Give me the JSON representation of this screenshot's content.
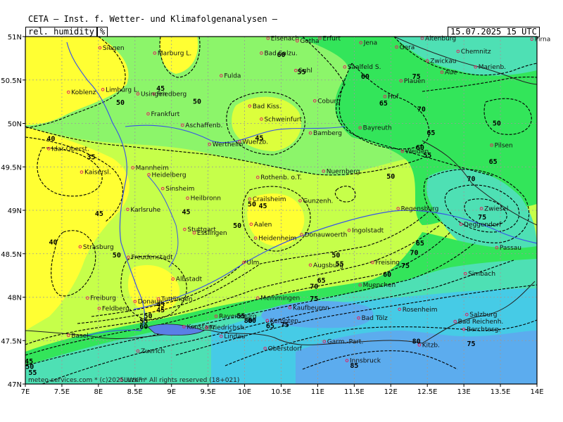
{
  "header": {
    "title": "CETA — Inst. f. Wetter- und Klimafolgenanalysen —",
    "variable_label": "rel. humidity",
    "unit": "%",
    "valid_time": "15.07.2025 15 UTC"
  },
  "copyright": "meteo-services.com * (c)2025 IWKF * All rights reserved (18+021)",
  "axes": {
    "y_ticks": [
      "51N",
      "50.5N",
      "50N",
      "49.5N",
      "49N",
      "48.5N",
      "48N",
      "47.5N",
      "47N"
    ],
    "x_ticks": [
      "7E",
      "7.5E",
      "8E",
      "8.5E",
      "9E",
      "9.5E",
      "10E",
      "10.5E",
      "11E",
      "11.5E",
      "12E",
      "12.5E",
      "13E",
      "13.5E",
      "14E"
    ]
  },
  "contour_labels": [
    {
      "t": "40",
      "lon": 7.35,
      "lat": 49.82
    },
    {
      "t": "35",
      "lon": 7.9,
      "lat": 49.61
    },
    {
      "t": "40",
      "lon": 7.38,
      "lat": 48.63
    },
    {
      "t": "45",
      "lon": 7.05,
      "lat": 47.26
    },
    {
      "t": "50",
      "lon": 7.06,
      "lat": 47.2
    },
    {
      "t": "55",
      "lon": 7.1,
      "lat": 47.13
    },
    {
      "t": "45",
      "lon": 8.01,
      "lat": 48.96
    },
    {
      "t": "45",
      "lon": 8.85,
      "lat": 50.4
    },
    {
      "t": "50",
      "lon": 8.3,
      "lat": 50.24
    },
    {
      "t": "50",
      "lon": 9.35,
      "lat": 50.25
    },
    {
      "t": "45",
      "lon": 9.2,
      "lat": 48.98
    },
    {
      "t": "50",
      "lon": 8.25,
      "lat": 48.48
    },
    {
      "t": "45",
      "lon": 8.85,
      "lat": 47.91
    },
    {
      "t": "45",
      "lon": 8.85,
      "lat": 47.85
    },
    {
      "t": "50",
      "lon": 8.68,
      "lat": 47.78
    },
    {
      "t": "55",
      "lon": 8.62,
      "lat": 47.72
    },
    {
      "t": "60",
      "lon": 8.62,
      "lat": 47.66
    },
    {
      "t": "45",
      "lon": 10.2,
      "lat": 49.83
    },
    {
      "t": "50",
      "lon": 10.1,
      "lat": 49.07
    },
    {
      "t": "45",
      "lon": 10.25,
      "lat": 49.05
    },
    {
      "t": "50",
      "lon": 9.9,
      "lat": 48.82
    },
    {
      "t": "55",
      "lon": 9.95,
      "lat": 47.78
    },
    {
      "t": "60",
      "lon": 10.1,
      "lat": 47.73
    },
    {
      "t": "65",
      "lon": 10.35,
      "lat": 47.67
    },
    {
      "t": "60",
      "lon": 10.5,
      "lat": 50.79
    },
    {
      "t": "55",
      "lon": 10.78,
      "lat": 50.59
    },
    {
      "t": "60",
      "lon": 11.65,
      "lat": 50.54
    },
    {
      "t": "65",
      "lon": 11.9,
      "lat": 50.23
    },
    {
      "t": "70",
      "lon": 12.42,
      "lat": 50.16
    },
    {
      "t": "75",
      "lon": 12.35,
      "lat": 50.54
    },
    {
      "t": "65",
      "lon": 12.55,
      "lat": 49.89
    },
    {
      "t": "60",
      "lon": 12.4,
      "lat": 49.72
    },
    {
      "t": "55",
      "lon": 12.5,
      "lat": 49.63
    },
    {
      "t": "50",
      "lon": 12.0,
      "lat": 49.39
    },
    {
      "t": "50",
      "lon": 13.45,
      "lat": 50.0
    },
    {
      "t": "65",
      "lon": 13.4,
      "lat": 49.56
    },
    {
      "t": "70",
      "lon": 13.1,
      "lat": 49.36
    },
    {
      "t": "75",
      "lon": 13.25,
      "lat": 48.92
    },
    {
      "t": "65",
      "lon": 12.4,
      "lat": 48.62
    },
    {
      "t": "70",
      "lon": 12.32,
      "lat": 48.51
    },
    {
      "t": "75",
      "lon": 12.2,
      "lat": 48.36
    },
    {
      "t": "50",
      "lon": 11.25,
      "lat": 48.48
    },
    {
      "t": "55",
      "lon": 11.3,
      "lat": 48.38
    },
    {
      "t": "60",
      "lon": 11.95,
      "lat": 48.26
    },
    {
      "t": "65",
      "lon": 11.05,
      "lat": 48.19
    },
    {
      "t": "70",
      "lon": 10.95,
      "lat": 48.12
    },
    {
      "t": "75",
      "lon": 10.95,
      "lat": 47.98
    },
    {
      "t": "80",
      "lon": 10.05,
      "lat": 47.73
    },
    {
      "t": "75",
      "lon": 10.55,
      "lat": 47.68
    },
    {
      "t": "80",
      "lon": 12.35,
      "lat": 47.49
    },
    {
      "t": "75",
      "lon": 13.1,
      "lat": 47.46
    },
    {
      "t": "85",
      "lon": 11.5,
      "lat": 47.21
    }
  ],
  "cities": [
    {
      "n": "Eisenach",
      "lon": 10.32,
      "lat": 50.98
    },
    {
      "n": "Erfurt",
      "lon": 11.03,
      "lat": 50.98
    },
    {
      "n": "Gotha",
      "lon": 10.72,
      "lat": 50.95
    },
    {
      "n": "Pirna",
      "lon": 13.93,
      "lat": 50.97
    },
    {
      "n": "Altenburg",
      "lon": 12.43,
      "lat": 50.98
    },
    {
      "n": "Siegen",
      "lon": 8.02,
      "lat": 50.87
    },
    {
      "n": "Marburg L.",
      "lon": 8.77,
      "lat": 50.81
    },
    {
      "n": "Bad Salzu.",
      "lon": 10.23,
      "lat": 50.81
    },
    {
      "n": "Jena",
      "lon": 11.59,
      "lat": 50.93
    },
    {
      "n": "Gera",
      "lon": 12.08,
      "lat": 50.88
    },
    {
      "n": "Chemnitz",
      "lon": 12.92,
      "lat": 50.83
    },
    {
      "n": "Saalfeld S.",
      "lon": 11.37,
      "lat": 50.65
    },
    {
      "n": "Zwickau",
      "lon": 12.5,
      "lat": 50.72
    },
    {
      "n": "Suhl",
      "lon": 10.7,
      "lat": 50.61
    },
    {
      "n": "Marienb.",
      "lon": 13.16,
      "lat": 50.65
    },
    {
      "n": "Aue",
      "lon": 12.7,
      "lat": 50.59
    },
    {
      "n": "Fulda",
      "lon": 9.68,
      "lat": 50.55
    },
    {
      "n": "Limburg L.",
      "lon": 8.06,
      "lat": 50.39
    },
    {
      "n": "Friedberg",
      "lon": 8.76,
      "lat": 50.34
    },
    {
      "n": "Koblenz",
      "lon": 7.59,
      "lat": 50.36
    },
    {
      "n": "Usingen",
      "lon": 8.54,
      "lat": 50.34
    },
    {
      "n": "Plauen",
      "lon": 12.14,
      "lat": 50.49
    },
    {
      "n": "Hof",
      "lon": 11.92,
      "lat": 50.31
    },
    {
      "n": "Coburg",
      "lon": 10.96,
      "lat": 50.26
    },
    {
      "n": "Bad Kiss.",
      "lon": 10.07,
      "lat": 50.2
    },
    {
      "n": "Schweinfurt",
      "lon": 10.23,
      "lat": 50.05
    },
    {
      "n": "Frankfurt",
      "lon": 8.68,
      "lat": 50.11
    },
    {
      "n": "Aschaffenb.",
      "lon": 9.15,
      "lat": 49.98
    },
    {
      "n": "Bayreuth",
      "lon": 11.58,
      "lat": 49.95
    },
    {
      "n": "Bamberg",
      "lon": 10.9,
      "lat": 49.89
    },
    {
      "n": "Wuerzb.",
      "lon": 9.93,
      "lat": 49.79
    },
    {
      "n": "Wertheim",
      "lon": 9.52,
      "lat": 49.76
    },
    {
      "n": "Idar-Oberst.",
      "lon": 7.32,
      "lat": 49.71
    },
    {
      "n": "Pilsen",
      "lon": 13.38,
      "lat": 49.75
    },
    {
      "n": "Weiden",
      "lon": 12.16,
      "lat": 49.68
    },
    {
      "n": "Nuernberg",
      "lon": 11.08,
      "lat": 49.45
    },
    {
      "n": "Mannheim",
      "lon": 8.47,
      "lat": 49.49
    },
    {
      "n": "Kaisersl.",
      "lon": 7.77,
      "lat": 49.44
    },
    {
      "n": "Heidelberg",
      "lon": 8.69,
      "lat": 49.41
    },
    {
      "n": "Rothenb. o.T.",
      "lon": 10.18,
      "lat": 49.38
    },
    {
      "n": "Sinsheim",
      "lon": 8.88,
      "lat": 49.25
    },
    {
      "n": "Crailsheim",
      "lon": 10.07,
      "lat": 49.13
    },
    {
      "n": "Heilbronn",
      "lon": 9.22,
      "lat": 49.14
    },
    {
      "n": "Gunzenh.",
      "lon": 10.76,
      "lat": 49.11
    },
    {
      "n": "Regensburg",
      "lon": 12.1,
      "lat": 49.02
    },
    {
      "n": "Karlsruhe",
      "lon": 8.4,
      "lat": 49.01
    },
    {
      "n": "Zwiesel",
      "lon": 13.24,
      "lat": 49.02
    },
    {
      "n": "Deggendorf",
      "lon": 12.96,
      "lat": 48.84
    },
    {
      "n": "Aalen",
      "lon": 10.09,
      "lat": 48.84
    },
    {
      "n": "Ingolstadt",
      "lon": 11.43,
      "lat": 48.77
    },
    {
      "n": "Heidenheim",
      "lon": 10.15,
      "lat": 48.68
    },
    {
      "n": "Donauwoerth",
      "lon": 10.78,
      "lat": 48.72
    },
    {
      "n": "Stuttgart",
      "lon": 9.18,
      "lat": 48.78
    },
    {
      "n": "Strasburg",
      "lon": 7.75,
      "lat": 48.58
    },
    {
      "n": "Passau",
      "lon": 13.45,
      "lat": 48.57
    },
    {
      "n": "Esslingen",
      "lon": 9.31,
      "lat": 48.74
    },
    {
      "n": "Freudenstadt",
      "lon": 8.41,
      "lat": 48.46
    },
    {
      "n": "Augsburg",
      "lon": 10.9,
      "lat": 48.37
    },
    {
      "n": "Ulm",
      "lon": 9.99,
      "lat": 48.4
    },
    {
      "n": "Freising",
      "lon": 11.75,
      "lat": 48.4
    },
    {
      "n": "Albstadt",
      "lon": 9.02,
      "lat": 48.21
    },
    {
      "n": "Simbach",
      "lon": 13.02,
      "lat": 48.27
    },
    {
      "n": "Muenchen",
      "lon": 11.58,
      "lat": 48.14
    },
    {
      "n": "Tuttlingen",
      "lon": 8.82,
      "lat": 47.98
    },
    {
      "n": "Freiburg",
      "lon": 7.85,
      "lat": 47.99
    },
    {
      "n": "Donaue.",
      "lon": 8.5,
      "lat": 47.95
    },
    {
      "n": "Memmingen",
      "lon": 10.18,
      "lat": 47.99
    },
    {
      "n": "Feldberg",
      "lon": 8.01,
      "lat": 47.87
    },
    {
      "n": "Kaufbeuren",
      "lon": 10.62,
      "lat": 47.88
    },
    {
      "n": "Rosenheim",
      "lon": 12.12,
      "lat": 47.86
    },
    {
      "n": "Salzburg",
      "lon": 13.04,
      "lat": 47.8
    },
    {
      "n": "Ravensburg",
      "lon": 9.61,
      "lat": 47.78
    },
    {
      "n": "Bad Tölz",
      "lon": 11.56,
      "lat": 47.76
    },
    {
      "n": "Bad Reichenh.",
      "lon": 12.88,
      "lat": 47.72
    },
    {
      "n": "Konstanz",
      "lon": 9.17,
      "lat": 47.66
    },
    {
      "n": "Friedrichsh.",
      "lon": 9.48,
      "lat": 47.65
    },
    {
      "n": "Kempten",
      "lon": 10.31,
      "lat": 47.73
    },
    {
      "n": "Berchtesg.",
      "lon": 13.0,
      "lat": 47.63
    },
    {
      "n": "Lindau",
      "lon": 9.68,
      "lat": 47.55
    },
    {
      "n": "Basel",
      "lon": 7.59,
      "lat": 47.56
    },
    {
      "n": "Kitzb.",
      "lon": 12.39,
      "lat": 47.45
    },
    {
      "n": "Garm.-Part.",
      "lon": 11.09,
      "lat": 47.49
    },
    {
      "n": "Zuerich",
      "lon": 8.54,
      "lat": 47.38
    },
    {
      "n": "Oberstdorf",
      "lon": 10.28,
      "lat": 47.41
    },
    {
      "n": "Innsbruck",
      "lon": 11.4,
      "lat": 47.27
    },
    {
      "n": "Luzern",
      "lon": 8.31,
      "lat": 47.05
    }
  ],
  "colors": {
    "yellow": "#ffff33",
    "yellow_green": "#c6ff4a",
    "light_green": "#8cf56a",
    "green": "#33e55a",
    "teal": "#4ee0b4",
    "cyan": "#46cbe6",
    "blue": "#5cacee",
    "contour": "#000000",
    "river": "#3b55e6",
    "city_marker": "#e02060"
  }
}
